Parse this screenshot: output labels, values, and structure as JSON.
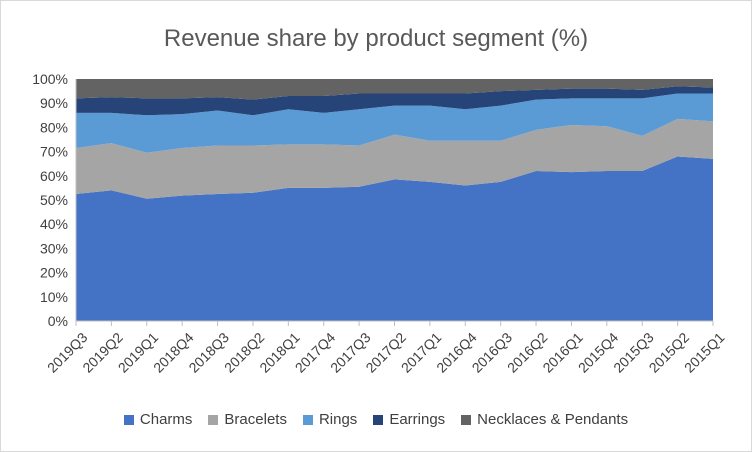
{
  "chart_data": {
    "type": "area",
    "stacked": true,
    "title": "Revenue share by product segment (%)",
    "xlabel": "",
    "ylabel": "",
    "ylim": [
      0,
      100
    ],
    "y_tick_labels": [
      "0%",
      "10%",
      "20%",
      "30%",
      "40%",
      "50%",
      "60%",
      "70%",
      "80%",
      "90%",
      "100%"
    ],
    "grid": false,
    "legend_position": "bottom",
    "categories": [
      "2019Q3",
      "2019Q2",
      "2019Q1",
      "2018Q4",
      "2018Q3",
      "2018Q2",
      "2018Q1",
      "2017Q4",
      "2017Q3",
      "2017Q2",
      "2017Q1",
      "2016Q4",
      "2016Q3",
      "2016Q2",
      "2016Q1",
      "2015Q4",
      "2015Q3",
      "2015Q2",
      "2015Q1"
    ],
    "series": [
      {
        "name": "Charms",
        "color": "#4472c4",
        "values": [
          52.5,
          54,
          50.5,
          51.8,
          52.5,
          53,
          55,
          55,
          55.5,
          58.5,
          57.5,
          56,
          57.5,
          62,
          61.5,
          62,
          62,
          68,
          67
        ]
      },
      {
        "name": "Bracelets",
        "color": "#a5a5a5",
        "values": [
          19,
          19.5,
          19,
          19.7,
          20,
          19.5,
          18,
          18,
          17,
          18.5,
          17,
          18.5,
          17,
          17,
          19.5,
          18.5,
          14.5,
          15.5,
          15.5
        ]
      },
      {
        "name": "Rings",
        "color": "#5b9bd5",
        "values": [
          14.5,
          12.5,
          15.5,
          14,
          14.5,
          12.5,
          14.5,
          13,
          15,
          12,
          14.5,
          13,
          14.5,
          12.5,
          11,
          11.5,
          15.5,
          10.5,
          11.5
        ]
      },
      {
        "name": "Earrings",
        "color": "#264478",
        "values": [
          6,
          6.5,
          7,
          6.5,
          5.5,
          6.5,
          5.5,
          7,
          6.5,
          5,
          5,
          6.5,
          6,
          4,
          4,
          4,
          3.5,
          3,
          2.5
        ]
      },
      {
        "name": "Necklaces & Pendants",
        "color": "#636363",
        "values": [
          8,
          7.5,
          8,
          8,
          7.5,
          8.5,
          7,
          7,
          6,
          6,
          6,
          6,
          5,
          4.5,
          4,
          4,
          4.5,
          3,
          3.5
        ]
      }
    ]
  }
}
